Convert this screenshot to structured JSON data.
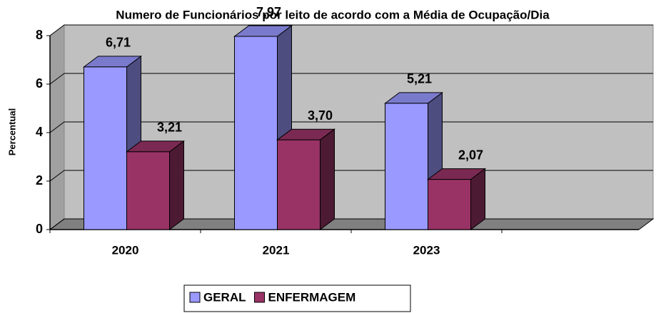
{
  "chart_data": {
    "type": "bar3d",
    "title": "Numero de Funcionários por leito de acordo com a Média de Ocupação/Dia",
    "y_label": "Percentual",
    "categories": [
      "2020",
      "2021",
      "2023"
    ],
    "series": [
      {
        "name": "GERAL",
        "color": "#9999ff",
        "values": [
          6.71,
          7.97,
          5.21
        ],
        "value_labels": [
          "6,71",
          "7,97",
          "5,21"
        ]
      },
      {
        "name": "ENFERMAGEM",
        "color": "#993366",
        "values": [
          3.21,
          3.7,
          2.07
        ],
        "value_labels": [
          "3,21",
          "3,70",
          "2,07"
        ]
      }
    ],
    "ylim": [
      0,
      8
    ],
    "yticks": [
      0,
      2,
      4,
      6,
      8
    ],
    "grid": true,
    "legend": "bottom"
  }
}
